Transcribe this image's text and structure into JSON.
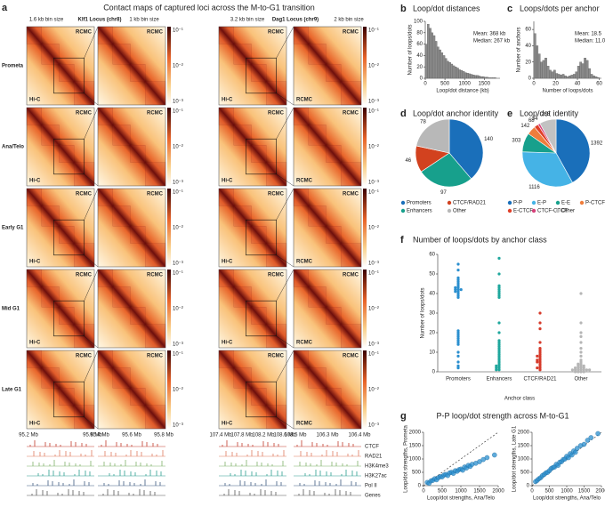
{
  "figure_a": {
    "label": "a",
    "title": "Contact maps of captured loci across the M-to-G1 transition",
    "headers": [
      "1.6 kb bin size",
      "Klf1 Locus (chr8)",
      "1 kb bin size",
      "3.2 kb bin size",
      "Dag1 Locus (chr9)",
      "2 kb bin size"
    ],
    "rows": [
      "Prometa",
      "Ana/Telo",
      "Early G1",
      "Mid G1",
      "Late G1"
    ],
    "upper": "RCMC",
    "lower": "Hi-C",
    "colorbar_labels": [
      "10⁻¹",
      "10⁻²",
      "10⁻³"
    ],
    "coords": [
      [
        "95.2 Mb",
        "95.6 Mb"
      ],
      [
        "95.4 Mb",
        "95.6 Mb",
        "95.8 Mb"
      ],
      [
        "107.4 Mb",
        "107.8 Mb",
        "108.2 Mb",
        "108.6 Mb"
      ],
      [
        "108.5 Mb",
        "106.3 Mb",
        "106.4 Mb"
      ]
    ],
    "tracks": [
      "CTCF",
      "RAD21",
      "H3K4me3",
      "H3K27ac",
      "Pol II",
      "Genes"
    ]
  },
  "chart_data": [
    {
      "type": "histogram",
      "label": "b",
      "title": "Loop/dot distances",
      "xlabel": "Loop/dot distance (kb)",
      "ylabel": "Number of loops/dots",
      "annotations": [
        "Mean: 368 kb",
        "Median: 267 kb"
      ],
      "color": "#8c8c8c",
      "bins": [
        0,
        50,
        100,
        150,
        200,
        250,
        300,
        350,
        400,
        450,
        500,
        550,
        600,
        650,
        700,
        750,
        800,
        850,
        900,
        950,
        1000,
        1050,
        1100,
        1150,
        1200,
        1250,
        1300,
        1350,
        1400,
        1450,
        1500,
        1550,
        1600,
        1650,
        1700,
        1750,
        1800
      ],
      "values": [
        60,
        95,
        88,
        80,
        75,
        65,
        55,
        50,
        45,
        40,
        35,
        30,
        28,
        25,
        22,
        20,
        18,
        15,
        14,
        12,
        10,
        9,
        8,
        7,
        6,
        5,
        5,
        4,
        3,
        3,
        2,
        2,
        1,
        1,
        1,
        1
      ],
      "xlim": [
        0,
        1900
      ],
      "xticks": [
        0,
        500,
        1000,
        1500
      ],
      "ylim": [
        0,
        100
      ],
      "yticks": [
        0,
        20,
        40,
        60,
        80,
        100
      ]
    },
    {
      "type": "histogram",
      "label": "c",
      "title": "Loops/dots per anchor",
      "xlabel": "Number of loops/dots",
      "ylabel": "Number of anchors",
      "annotations": [
        "Mean: 18.5",
        "Median: 11.0"
      ],
      "color": "#8c8c8c",
      "bins": [
        0,
        2,
        4,
        6,
        8,
        10,
        12,
        14,
        16,
        18,
        20,
        22,
        24,
        26,
        28,
        30,
        32,
        34,
        36,
        38,
        40,
        42,
        44,
        46,
        48,
        50,
        52,
        54,
        56,
        58,
        60
      ],
      "values": [
        55,
        40,
        30,
        20,
        22,
        25,
        15,
        10,
        8,
        10,
        6,
        5,
        4,
        5,
        3,
        2,
        3,
        4,
        5,
        8,
        15,
        20,
        18,
        25,
        22,
        12,
        5,
        3,
        2,
        1
      ],
      "xlim": [
        0,
        62
      ],
      "xticks": [
        0,
        20,
        40,
        60
      ],
      "ylim": [
        0,
        70
      ],
      "yticks": [
        0,
        20,
        40,
        60
      ]
    },
    {
      "type": "pie",
      "label": "d",
      "title": "Loop/dot anchor identity",
      "categories": [
        "Promoters",
        "Enhancers",
        "CTCF/RAD21",
        "Other"
      ],
      "values": [
        140,
        97,
        46,
        78
      ],
      "colors": [
        "#1a6fba",
        "#17a08c",
        "#d2421f",
        "#b8b8b8"
      ]
    },
    {
      "type": "pie",
      "label": "e",
      "title": "Loop/dot identity",
      "categories": [
        "P-P",
        "E-P",
        "E-E",
        "P-CTCF",
        "E-CTCF",
        "CTCF-CTCF",
        "Other"
      ],
      "values": [
        1392,
        1116,
        303,
        142,
        68,
        34,
        265
      ],
      "colors": [
        "#1a6fba",
        "#45b3e6",
        "#17a08c",
        "#ef7d3c",
        "#e0402a",
        "#d6407a",
        "#c2c2c2"
      ]
    },
    {
      "type": "strip",
      "label": "f",
      "title": "Number of loops/dots by anchor class",
      "xlabel": "Anchor class",
      "ylabel": "Number of loops/dots",
      "categories": [
        "Promoters",
        "Enhancers",
        "CTCF/RAD21",
        "Other"
      ],
      "colors": [
        "#2a8fcf",
        "#1fa79d",
        "#d63a2a",
        "#b5b5b5"
      ],
      "values": [
        [
          42,
          42,
          43,
          41,
          44,
          40,
          42,
          43,
          45,
          41,
          39,
          38,
          46,
          47,
          48,
          52,
          55,
          18,
          17,
          19,
          16,
          20,
          15,
          21,
          14,
          10,
          8,
          5,
          3,
          2
        ],
        [
          40,
          41,
          42,
          39,
          43,
          44,
          38,
          58,
          50,
          12,
          10,
          8,
          11,
          9,
          13,
          7,
          6,
          5,
          4,
          3,
          3,
          2,
          2,
          1,
          1,
          14,
          15,
          16,
          20,
          25
        ],
        [
          22,
          25,
          30,
          15,
          12,
          10,
          8,
          9,
          7,
          6,
          5,
          4,
          3,
          2,
          5,
          6,
          8,
          11,
          1,
          2
        ],
        [
          40,
          25,
          20,
          12,
          10,
          8,
          6,
          5,
          4,
          4,
          3,
          3,
          3,
          2,
          2,
          2,
          2,
          1,
          1,
          1,
          1,
          1,
          1,
          1,
          0,
          0,
          0,
          0,
          15,
          18
        ]
      ],
      "ylim": [
        0,
        60
      ],
      "yticks": [
        0,
        10,
        20,
        30,
        40,
        50,
        60
      ]
    },
    {
      "type": "scatter",
      "label": "g",
      "title": "P-P loop/dot strength across M-to-G1",
      "xlabel": "Loop/dot strengths, Ana/Telo",
      "ylabel": "Loop/dot strengths, Prometa",
      "color": "#2a8fcf",
      "diagonal": true,
      "x": [
        100,
        150,
        200,
        250,
        300,
        350,
        400,
        450,
        500,
        550,
        600,
        650,
        700,
        750,
        800,
        850,
        900,
        950,
        1000,
        1050,
        1100,
        1150,
        1200,
        1250,
        1300,
        1400,
        1500,
        1600,
        1700,
        1900
      ],
      "y": [
        120,
        90,
        180,
        200,
        260,
        220,
        300,
        340,
        330,
        400,
        420,
        380,
        480,
        500,
        460,
        560,
        540,
        600,
        620,
        580,
        700,
        660,
        760,
        720,
        800,
        840,
        900,
        980,
        1050,
        1150
      ],
      "xlim": [
        0,
        2000
      ],
      "xticks": [
        0,
        500,
        1000,
        1500,
        2000
      ],
      "ylim": [
        0,
        2000
      ],
      "yticks": [
        0,
        500,
        1000,
        1500,
        2000
      ]
    },
    {
      "type": "scatter",
      "xlabel": "Loop/dot strengths, Ana/Telo",
      "ylabel": "Loop/dot strengths, Late G1",
      "color": "#2a8fcf",
      "diagonal": true,
      "x": [
        100,
        150,
        200,
        250,
        300,
        350,
        400,
        450,
        500,
        550,
        600,
        650,
        700,
        750,
        800,
        850,
        900,
        950,
        1000,
        1050,
        1100,
        1150,
        1200,
        1250,
        1300,
        1400,
        1500,
        1600,
        1700,
        1900
      ],
      "y": [
        150,
        200,
        260,
        300,
        380,
        420,
        480,
        500,
        560,
        640,
        680,
        700,
        800,
        760,
        880,
        900,
        980,
        1000,
        1100,
        1050,
        1200,
        1150,
        1300,
        1250,
        1400,
        1500,
        1550,
        1700,
        1800,
        1950
      ],
      "xlim": [
        0,
        2000
      ],
      "xticks": [
        0,
        500,
        1000,
        1500,
        2000
      ],
      "ylim": [
        0,
        2000
      ],
      "yticks": [
        0,
        500,
        1000,
        1500,
        2000
      ]
    }
  ]
}
